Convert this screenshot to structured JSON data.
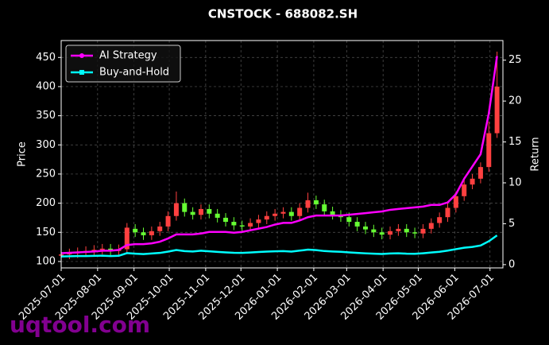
{
  "chart_data": {
    "type": "candlestick",
    "title": "CNSTOCK - 688082.SH",
    "ylabel": "Price",
    "y2label": "Return",
    "watermark": "uqtool.com",
    "up_color": "#ff4040",
    "down_color": "#66ff33",
    "grid": true,
    "legend": "upper left",
    "x": [
      "2025-07-01",
      "2025-07-08",
      "2025-07-15",
      "2025-07-22",
      "2025-07-29",
      "2025-08-05",
      "2025-08-12",
      "2025-08-19",
      "2025-08-26",
      "2025-09-02",
      "2025-09-09",
      "2025-09-16",
      "2025-09-23",
      "2025-09-30",
      "2025-10-07",
      "2025-10-14",
      "2025-10-21",
      "2025-10-28",
      "2025-11-04",
      "2025-11-11",
      "2025-11-18",
      "2025-11-25",
      "2025-12-02",
      "2025-12-09",
      "2025-12-16",
      "2025-12-23",
      "2025-12-30",
      "2026-01-06",
      "2026-01-13",
      "2026-01-20",
      "2026-01-27",
      "2026-02-03",
      "2026-02-10",
      "2026-02-17",
      "2026-02-24",
      "2026-03-03",
      "2026-03-10",
      "2026-03-17",
      "2026-03-24",
      "2026-03-31",
      "2026-04-07",
      "2026-04-14",
      "2026-04-21",
      "2026-04-28",
      "2026-05-05",
      "2026-05-12",
      "2026-05-19",
      "2026-05-26",
      "2026-06-02",
      "2026-06-09",
      "2026-06-16",
      "2026-06-23",
      "2026-06-30",
      "2026-07-07"
    ],
    "open": [
      110,
      112,
      114,
      116,
      118,
      120,
      122,
      118,
      121,
      156,
      150,
      145,
      152,
      160,
      178,
      200,
      185,
      180,
      190,
      182,
      175,
      168,
      162,
      160,
      166,
      172,
      178,
      182,
      185,
      178,
      192,
      205,
      198,
      186,
      180,
      176,
      168,
      160,
      155,
      150,
      146,
      152,
      156,
      150,
      148,
      156,
      166,
      176,
      192,
      212,
      232,
      242,
      262,
      320
    ],
    "high": [
      120,
      122,
      124,
      126,
      128,
      130,
      130,
      129,
      166,
      164,
      158,
      160,
      168,
      186,
      220,
      208,
      193,
      198,
      198,
      190,
      183,
      176,
      170,
      174,
      180,
      186,
      190,
      193,
      193,
      200,
      218,
      213,
      206,
      194,
      188,
      184,
      176,
      168,
      163,
      158,
      160,
      164,
      164,
      158,
      164,
      174,
      184,
      200,
      220,
      240,
      250,
      270,
      340,
      460
    ],
    "low": [
      102,
      104,
      106,
      108,
      110,
      112,
      110,
      110,
      113,
      142,
      137,
      137,
      144,
      152,
      170,
      177,
      172,
      172,
      174,
      167,
      160,
      154,
      152,
      152,
      158,
      164,
      170,
      174,
      170,
      170,
      184,
      190,
      178,
      172,
      168,
      160,
      152,
      147,
      142,
      138,
      138,
      144,
      142,
      140,
      140,
      148,
      158,
      168,
      184,
      204,
      224,
      234,
      254,
      312
    ],
    "close": [
      112,
      114,
      116,
      118,
      120,
      122,
      118,
      121,
      158,
      150,
      145,
      152,
      160,
      178,
      200,
      185,
      180,
      190,
      182,
      175,
      168,
      162,
      160,
      166,
      172,
      178,
      182,
      185,
      178,
      192,
      205,
      198,
      186,
      180,
      176,
      168,
      160,
      155,
      150,
      146,
      152,
      156,
      150,
      148,
      156,
      166,
      176,
      192,
      212,
      232,
      242,
      262,
      320,
      400
    ],
    "series": [
      {
        "name": "AI Strategy",
        "color": "#ff00ff",
        "axis": "y2",
        "values": [
          1.4,
          1.45,
          1.5,
          1.55,
          1.6,
          1.7,
          1.7,
          1.8,
          2.4,
          2.5,
          2.5,
          2.6,
          2.8,
          3.2,
          3.7,
          3.7,
          3.7,
          3.8,
          4.0,
          4.0,
          4.0,
          3.9,
          4.0,
          4.2,
          4.4,
          4.6,
          4.9,
          5.1,
          5.1,
          5.4,
          5.8,
          6.0,
          6.0,
          6.0,
          6.0,
          6.1,
          6.2,
          6.3,
          6.4,
          6.5,
          6.7,
          6.8,
          6.9,
          7.0,
          7.1,
          7.3,
          7.3,
          7.6,
          8.6,
          10.5,
          12.0,
          13.5,
          18.5,
          25.5
        ]
      },
      {
        "name": "Buy-and-Hold",
        "color": "#00ffff",
        "axis": "y2",
        "values": [
          1.0,
          1.02,
          1.04,
          1.05,
          1.07,
          1.09,
          1.05,
          1.08,
          1.41,
          1.34,
          1.29,
          1.36,
          1.43,
          1.59,
          1.79,
          1.65,
          1.61,
          1.7,
          1.63,
          1.56,
          1.5,
          1.45,
          1.43,
          1.48,
          1.54,
          1.59,
          1.63,
          1.65,
          1.59,
          1.71,
          1.83,
          1.77,
          1.66,
          1.61,
          1.57,
          1.5,
          1.43,
          1.38,
          1.34,
          1.3,
          1.36,
          1.39,
          1.34,
          1.32,
          1.39,
          1.48,
          1.57,
          1.71,
          1.89,
          2.07,
          2.16,
          2.34,
          2.86,
          3.57
        ]
      }
    ],
    "xlim": [
      "2025-07-01",
      "2026-07-12"
    ],
    "xticks": [
      "2025-07-01",
      "2025-08-01",
      "2025-09-01",
      "2025-10-01",
      "2025-11-01",
      "2025-12-01",
      "2026-01-01",
      "2026-02-01",
      "2026-03-01",
      "2026-04-01",
      "2026-05-01",
      "2026-06-01",
      "2026-07-01"
    ],
    "ylim": [
      89,
      479
    ],
    "yticks": [
      100,
      150,
      200,
      250,
      300,
      350,
      400,
      450
    ],
    "y2lim": [
      -0.4,
      27.4
    ],
    "y2ticks": [
      0,
      5,
      10,
      15,
      20,
      25
    ]
  }
}
